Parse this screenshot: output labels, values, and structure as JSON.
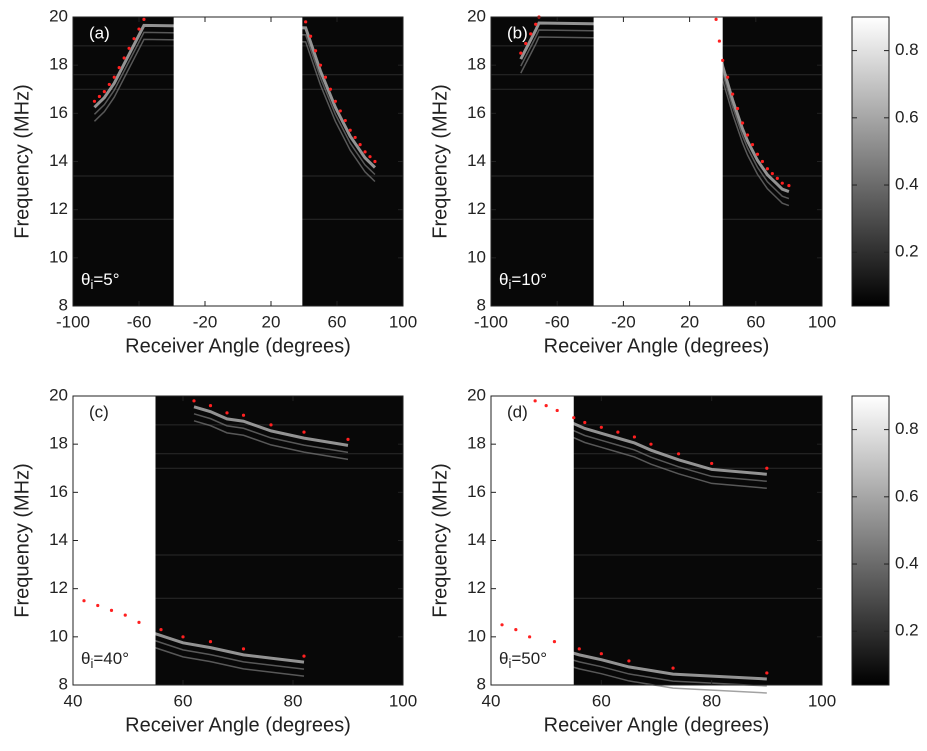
{
  "chart_data": [
    {
      "type": "scatter",
      "label": "(a)",
      "annotation": {
        "symbol": "θ",
        "subscript": "i",
        "text": "=5°"
      },
      "x_label": "Receiver Angle (degrees)",
      "y_label": "Frequency (MHz)",
      "xlim": [
        -100,
        100
      ],
      "ylim": [
        8,
        20
      ],
      "xticks": [
        -100,
        -60,
        -20,
        20,
        60,
        100
      ],
      "yticks": [
        8,
        10,
        12,
        14,
        16,
        18,
        20
      ],
      "mask_xlim": [
        -39,
        39
      ],
      "color": "#ff2020",
      "x": [
        -87,
        -84,
        -81,
        -78,
        -75,
        -72,
        -69,
        -66,
        -63,
        -60,
        -57,
        41,
        44,
        47,
        50,
        53,
        56,
        59,
        62,
        65,
        68,
        71,
        74,
        77,
        80,
        83
      ],
      "y": [
        16.5,
        16.7,
        16.9,
        17.2,
        17.5,
        17.9,
        18.3,
        18.7,
        19.1,
        19.5,
        19.9,
        19.8,
        19.2,
        18.6,
        18.0,
        17.5,
        17.0,
        16.5,
        16.1,
        15.7,
        15.3,
        15.0,
        14.7,
        14.4,
        14.2,
        14.0
      ]
    },
    {
      "type": "scatter",
      "label": "(b)",
      "annotation": {
        "symbol": "θ",
        "subscript": "i",
        "text": "=10°"
      },
      "x_label": "Receiver Angle (degrees)",
      "y_label": "Frequency (MHz)",
      "xlim": [
        -100,
        100
      ],
      "ylim": [
        8,
        20
      ],
      "xticks": [
        -100,
        -60,
        -20,
        20,
        60,
        100
      ],
      "yticks": [
        8,
        10,
        12,
        14,
        16,
        18,
        20
      ],
      "mask_xlim": [
        -38,
        40
      ],
      "color": "#ff2020",
      "x": [
        -82,
        -79,
        -76,
        -73,
        -71,
        36,
        38,
        40,
        43,
        46,
        49,
        52,
        55,
        58,
        61,
        64,
        67,
        70,
        73,
        76,
        80
      ],
      "y": [
        18.5,
        18.9,
        19.3,
        19.7,
        20,
        19.9,
        19.0,
        18.2,
        17.5,
        16.8,
        16.2,
        15.6,
        15.1,
        14.7,
        14.3,
        14.0,
        13.7,
        13.5,
        13.3,
        13.1,
        13.0
      ]
    },
    {
      "type": "scatter",
      "label": "(c)",
      "annotation": {
        "symbol": "θ",
        "subscript": "i",
        "text": "=40°"
      },
      "x_label": "Receiver Angle (degrees)",
      "y_label": "Frequency (MHz)",
      "xlim": [
        40,
        100
      ],
      "ylim": [
        8,
        20
      ],
      "xticks": [
        40,
        60,
        80,
        100
      ],
      "yticks": [
        8,
        10,
        12,
        14,
        16,
        18,
        20
      ],
      "mask_xlim": [
        40,
        55
      ],
      "color": "#ff2020",
      "x": [
        62,
        65,
        68,
        71,
        76,
        82,
        90,
        42,
        44.5,
        47,
        49.5,
        52,
        56,
        60,
        65,
        71,
        82
      ],
      "y": [
        19.8,
        19.6,
        19.3,
        19.2,
        18.8,
        18.5,
        18.2,
        11.5,
        11.3,
        11.1,
        10.9,
        10.6,
        10.3,
        10.0,
        9.8,
        9.5,
        9.2
      ]
    },
    {
      "type": "scatter",
      "label": "(d)",
      "annotation": {
        "symbol": "θ",
        "subscript": "i",
        "text": "=50°"
      },
      "x_label": "Receiver Angle (degrees)",
      "y_label": "Frequency (MHz)",
      "xlim": [
        40,
        100
      ],
      "ylim": [
        8,
        20
      ],
      "xticks": [
        40,
        60,
        80,
        100
      ],
      "yticks": [
        8,
        10,
        12,
        14,
        16,
        18,
        20
      ],
      "mask_xlim": [
        40,
        55
      ],
      "color": "#ff2020",
      "x": [
        48,
        50,
        52,
        55,
        57,
        60,
        63,
        66,
        69,
        74,
        80,
        90,
        42,
        44.5,
        47,
        51.5,
        56,
        60,
        65,
        73,
        90
      ],
      "y": [
        19.8,
        19.6,
        19.4,
        19.1,
        18.9,
        18.7,
        18.5,
        18.3,
        18.0,
        17.6,
        17.2,
        17.0,
        10.5,
        10.3,
        10.0,
        9.8,
        9.5,
        9.3,
        9.0,
        8.7,
        8.5
      ]
    },
    {
      "type": "colorbar",
      "ylim": [
        0.04,
        0.9
      ],
      "yticks": [
        0.2,
        0.4,
        0.6,
        0.8
      ]
    },
    {
      "type": "colorbar",
      "ylim": [
        0.04,
        0.9
      ],
      "yticks": [
        0.2,
        0.4,
        0.6,
        0.8
      ]
    }
  ]
}
